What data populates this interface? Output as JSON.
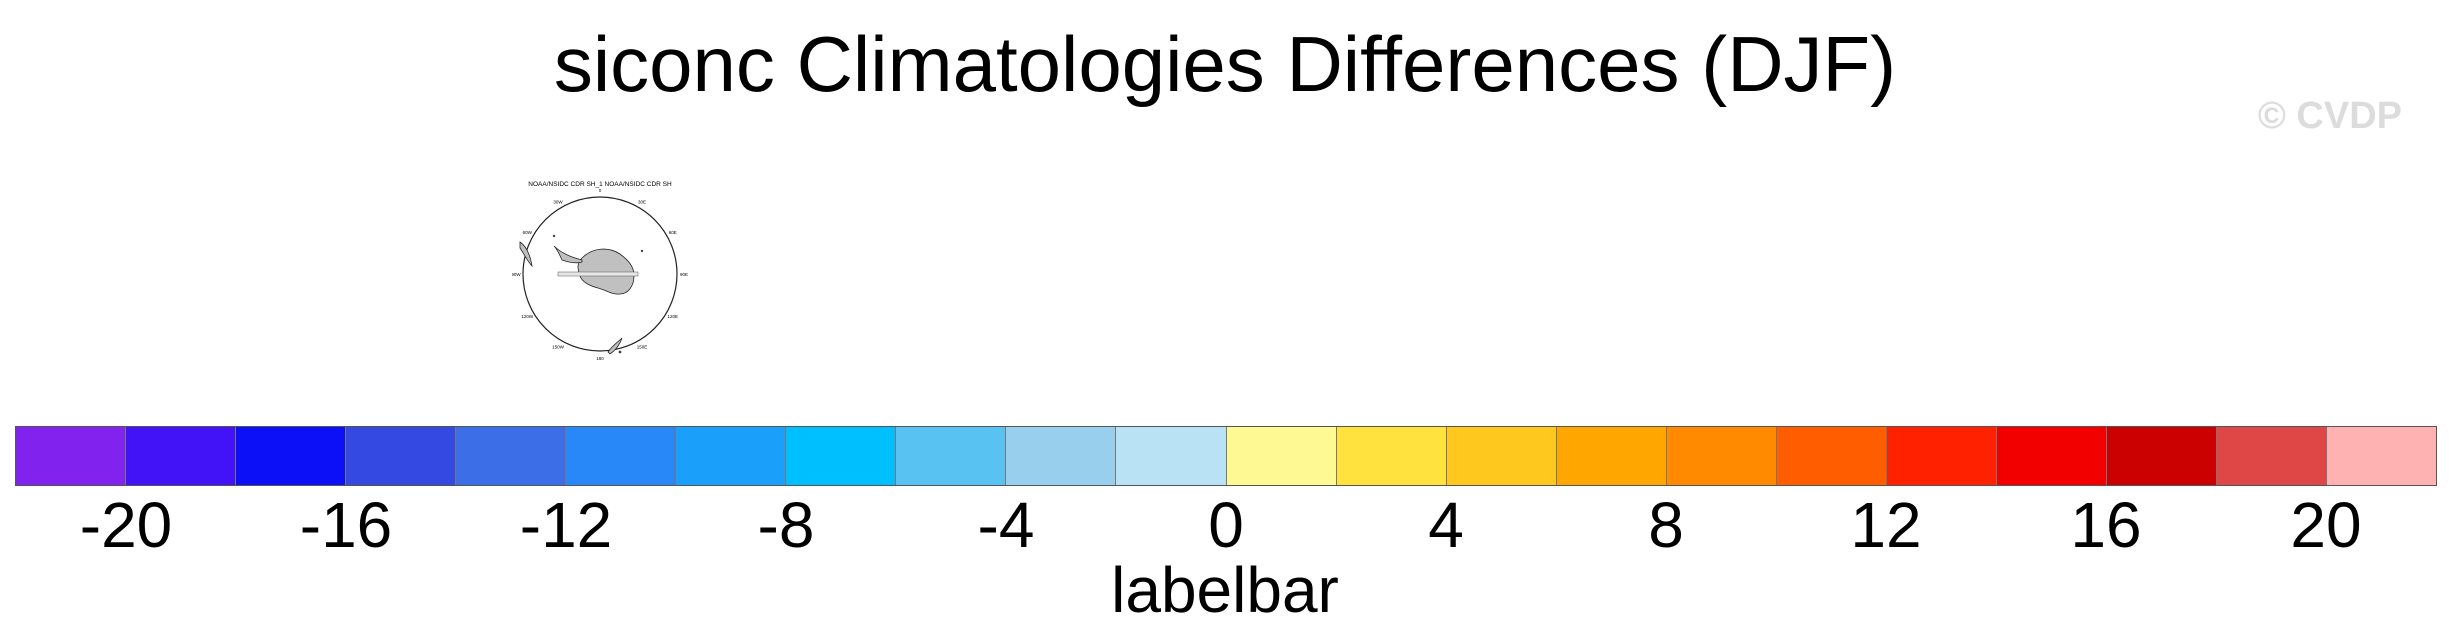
{
  "title": "siconc Climatologies Differences (DJF)",
  "watermark": "© CVDP",
  "panel": {
    "title": "NOAA/NSIDC CDR SH_1 NOAA/NSIDC CDR SH",
    "projection": "south-polar-stereographic",
    "land_color": "#c0c0c0",
    "longitude_labels": [
      "0",
      "30E",
      "60E",
      "90E",
      "120E",
      "150E",
      "180",
      "150W",
      "120W",
      "90W",
      "60W",
      "30W"
    ]
  },
  "chart_data": {
    "type": "heatmap",
    "title": "siconc Climatologies Differences (DJF)",
    "colorbar": {
      "label": "labelbar",
      "boundaries": [
        -22,
        -20,
        -18,
        -16,
        -14,
        -12,
        -10,
        -8,
        -6,
        -4,
        -2,
        0,
        2,
        4,
        6,
        8,
        10,
        12,
        14,
        16,
        18,
        20,
        22
      ],
      "tick_values": [
        -20,
        -16,
        -12,
        -8,
        -4,
        0,
        4,
        8,
        12,
        16,
        20
      ],
      "tick_labels": [
        "-20",
        "-16",
        "-12",
        "-8",
        "-4",
        "0",
        "4",
        "8",
        "12",
        "16",
        "20"
      ],
      "colors": [
        "#8122ee",
        "#4213f7",
        "#0c10f6",
        "#3448e2",
        "#3c6ee8",
        "#2988f7",
        "#1aa0fb",
        "#00bfff",
        "#58c3f2",
        "#98cfec",
        "#b9e2f5",
        "#fef992",
        "#ffe23e",
        "#ffc81e",
        "#ffa700",
        "#ff8a00",
        "#ff5d00",
        "#ff2100",
        "#f20000",
        "#cb0000",
        "#df4747",
        "#ffb2b2"
      ]
    }
  }
}
